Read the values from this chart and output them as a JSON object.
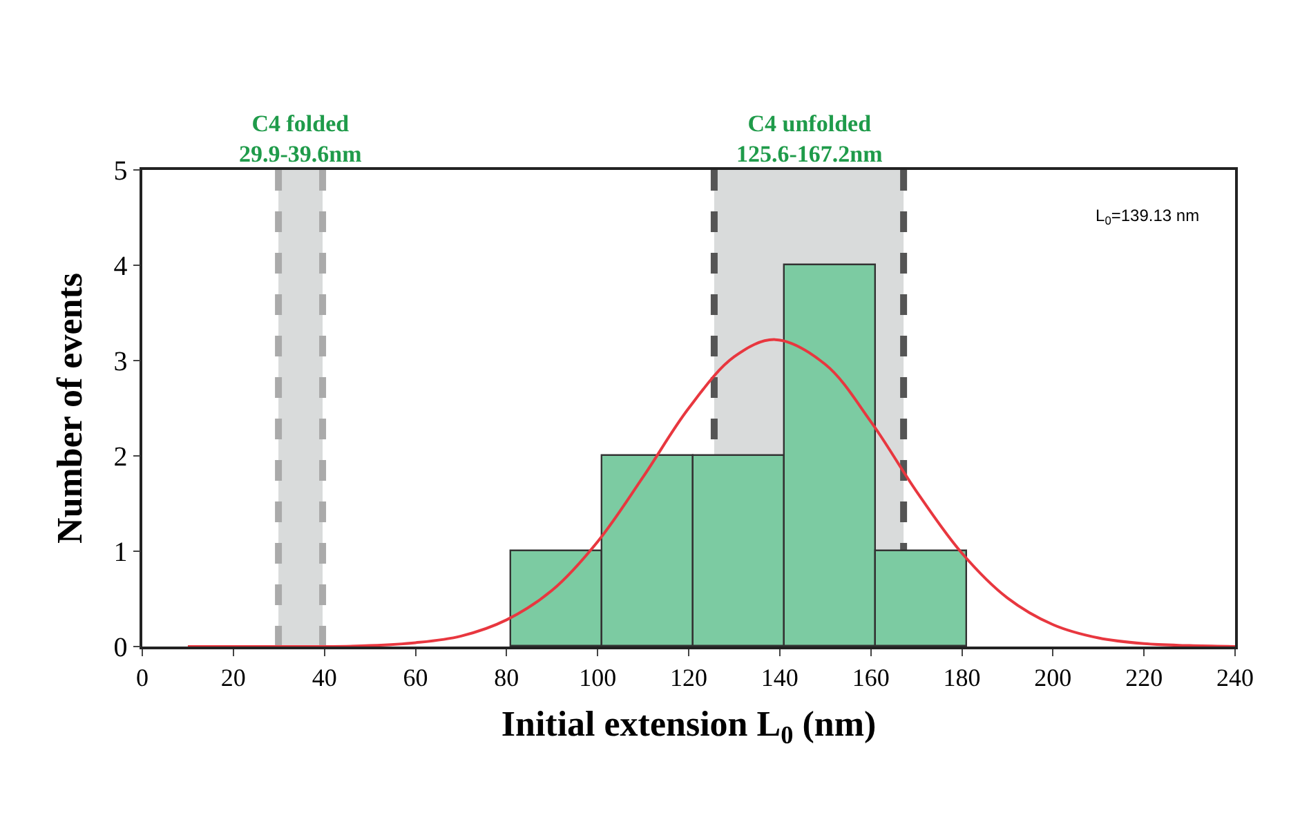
{
  "chart_data": {
    "type": "histogram",
    "xlabel": "Initial extension L$_{0}$ (nm)",
    "ylabel": "Number of events",
    "series": [
      {
        "type": "histogram",
        "bins": [
          81,
          101,
          121,
          141,
          161,
          181
        ],
        "values": [
          1,
          2,
          2,
          4,
          1
        ],
        "color": "#7ccba2"
      },
      {
        "type": "line",
        "color": "#e8373f",
        "x": [
          10,
          20,
          30,
          40,
          50,
          60,
          70,
          80,
          90,
          100,
          110,
          120,
          130,
          139,
          150,
          160,
          170,
          180,
          190,
          200,
          210,
          220,
          230,
          240
        ],
        "values": [
          0,
          0,
          0,
          0,
          0.01,
          0.04,
          0.11,
          0.28,
          0.59,
          1.1,
          1.78,
          2.5,
          3.04,
          3.22,
          2.96,
          2.36,
          1.63,
          0.98,
          0.51,
          0.23,
          0.09,
          0.03,
          0.01,
          0
        ]
      }
    ],
    "bands": [
      {
        "axis": "x",
        "from": 29.9,
        "to": 39.6,
        "label": "C4 folded\n29.9-39.6nm",
        "color": "#d9dbdb"
      },
      {
        "axis": "x",
        "from": 125.6,
        "to": 167.2,
        "label": "C4 unfolded\n125.6-167.2nm",
        "color": "#d9dbdb"
      }
    ],
    "ref_lines": [
      {
        "axis": "x",
        "value": 29.9,
        "color": "#aaaaaa",
        "line_style": "dashed"
      },
      {
        "axis": "x",
        "value": 39.6,
        "color": "#aaaaaa",
        "line_style": "dashed"
      },
      {
        "axis": "x",
        "value": 125.6,
        "color": "#555555",
        "line_style": "dashed"
      },
      {
        "axis": "x",
        "value": 167.2,
        "color": "#555555",
        "line_style": "dashed"
      }
    ],
    "annotations": [
      "L$_{0}$=139.13 nm"
    ],
    "xlim": [
      0,
      240
    ],
    "xticks": [
      0,
      20,
      40,
      60,
      80,
      100,
      120,
      140,
      160,
      180,
      200,
      220,
      240
    ],
    "ylim": [
      0,
      5
    ],
    "yticks": [
      0,
      1,
      2,
      3,
      4,
      5
    ],
    "grid": false
  }
}
